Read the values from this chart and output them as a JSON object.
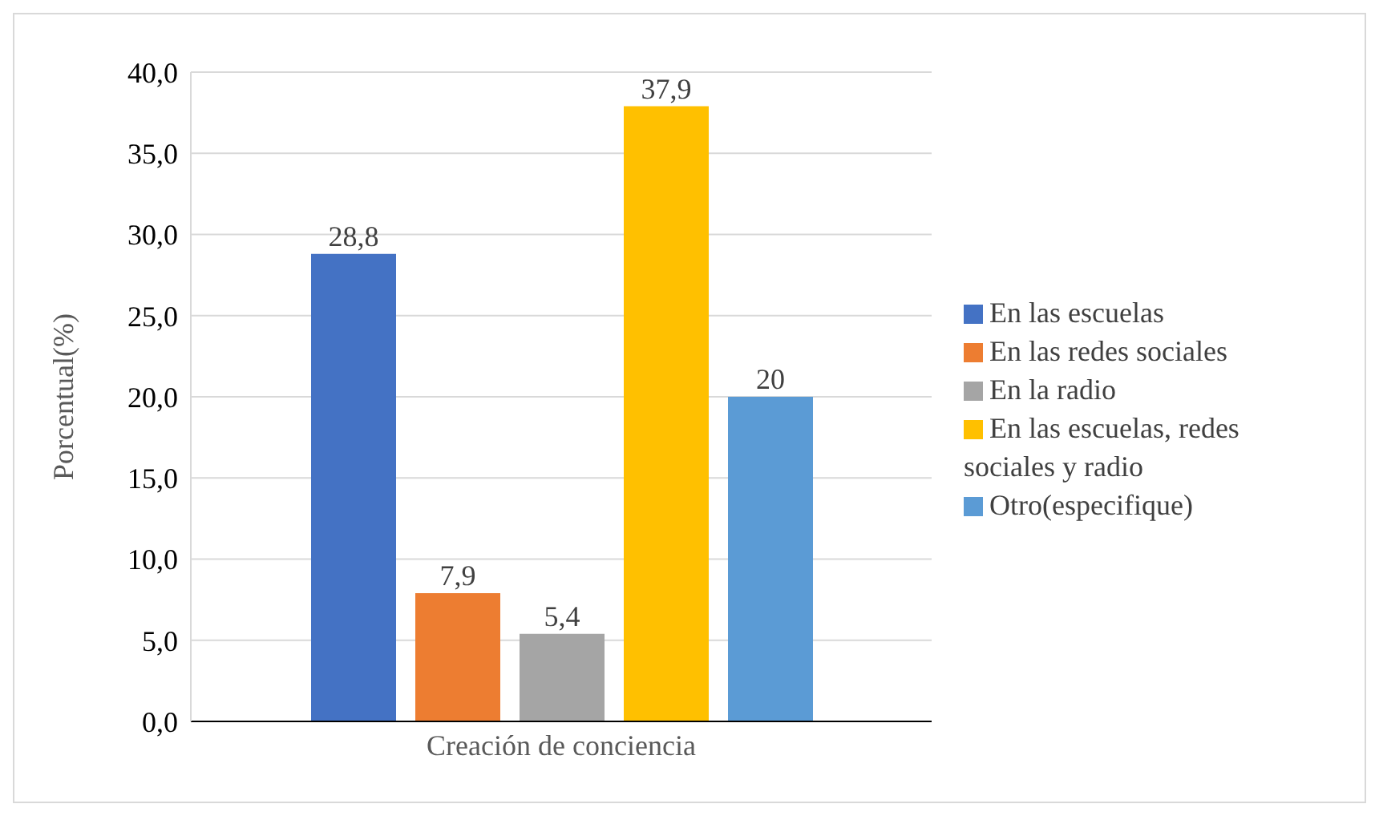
{
  "chart_data": {
    "type": "bar",
    "ylabel": "Porcentual(%)",
    "categories": [
      "Creación de conciencia"
    ],
    "series": [
      {
        "name": "En las escuelas",
        "color": "#4472c4",
        "values": [
          28.8
        ],
        "value_labels": [
          "28,8"
        ]
      },
      {
        "name": "En las redes sociales",
        "color": "#ed7d31",
        "values": [
          7.9
        ],
        "value_labels": [
          "7,9"
        ]
      },
      {
        "name": "En la radio",
        "color": "#a5a5a5",
        "values": [
          5.4
        ],
        "value_labels": [
          "5,4"
        ]
      },
      {
        "name": "En las escuelas, redes sociales y radio",
        "color": "#ffc000",
        "values": [
          37.9
        ],
        "value_labels": [
          "37,9"
        ]
      },
      {
        "name": "Otro(especifique)",
        "color": "#5b9bd5",
        "values": [
          20
        ],
        "value_labels": [
          "20"
        ]
      }
    ],
    "ylim": [
      0,
      40
    ],
    "yticks": [
      {
        "value": 0,
        "label": "0,0"
      },
      {
        "value": 5,
        "label": "5,0"
      },
      {
        "value": 10,
        "label": "10,0"
      },
      {
        "value": 15,
        "label": "15,0"
      },
      {
        "value": 20,
        "label": "20,0"
      },
      {
        "value": 25,
        "label": "25,0"
      },
      {
        "value": 30,
        "label": "30,0"
      },
      {
        "value": 35,
        "label": "35,0"
      },
      {
        "value": 40,
        "label": "40,0"
      }
    ],
    "grid": "y",
    "legend": "right"
  }
}
